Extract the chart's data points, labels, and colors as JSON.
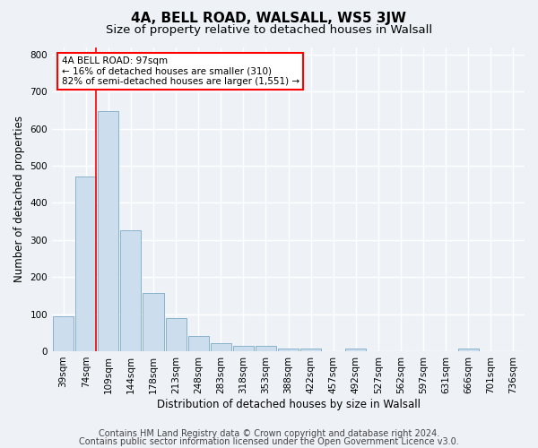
{
  "title1": "4A, BELL ROAD, WALSALL, WS5 3JW",
  "title2": "Size of property relative to detached houses in Walsall",
  "xlabel": "Distribution of detached houses by size in Walsall",
  "ylabel": "Number of detached properties",
  "bar_labels": [
    "39sqm",
    "74sqm",
    "109sqm",
    "144sqm",
    "178sqm",
    "213sqm",
    "248sqm",
    "283sqm",
    "318sqm",
    "353sqm",
    "388sqm",
    "422sqm",
    "457sqm",
    "492sqm",
    "527sqm",
    "562sqm",
    "597sqm",
    "631sqm",
    "666sqm",
    "701sqm",
    "736sqm"
  ],
  "bar_values": [
    95,
    470,
    648,
    325,
    157,
    90,
    40,
    22,
    15,
    15,
    8,
    8,
    0,
    8,
    0,
    0,
    0,
    0,
    8,
    0,
    0
  ],
  "bar_color": "#ccdded",
  "bar_edge_color": "#7aaac8",
  "annotation_line1": "4A BELL ROAD: 97sqm",
  "annotation_line2": "← 16% of detached houses are smaller (310)",
  "annotation_line3": "82% of semi-detached houses are larger (1,551) →",
  "ylim": [
    0,
    820
  ],
  "yticks": [
    0,
    100,
    200,
    300,
    400,
    500,
    600,
    700,
    800
  ],
  "footer1": "Contains HM Land Registry data © Crown copyright and database right 2024.",
  "footer2": "Contains public sector information licensed under the Open Government Licence v3.0.",
  "background_color": "#eef2f7",
  "plot_bg_color": "#eef2f7",
  "grid_color": "#ffffff",
  "title1_fontsize": 11,
  "title2_fontsize": 9.5,
  "xlabel_fontsize": 8.5,
  "ylabel_fontsize": 8.5,
  "tick_fontsize": 7.5,
  "footer_fontsize": 7
}
